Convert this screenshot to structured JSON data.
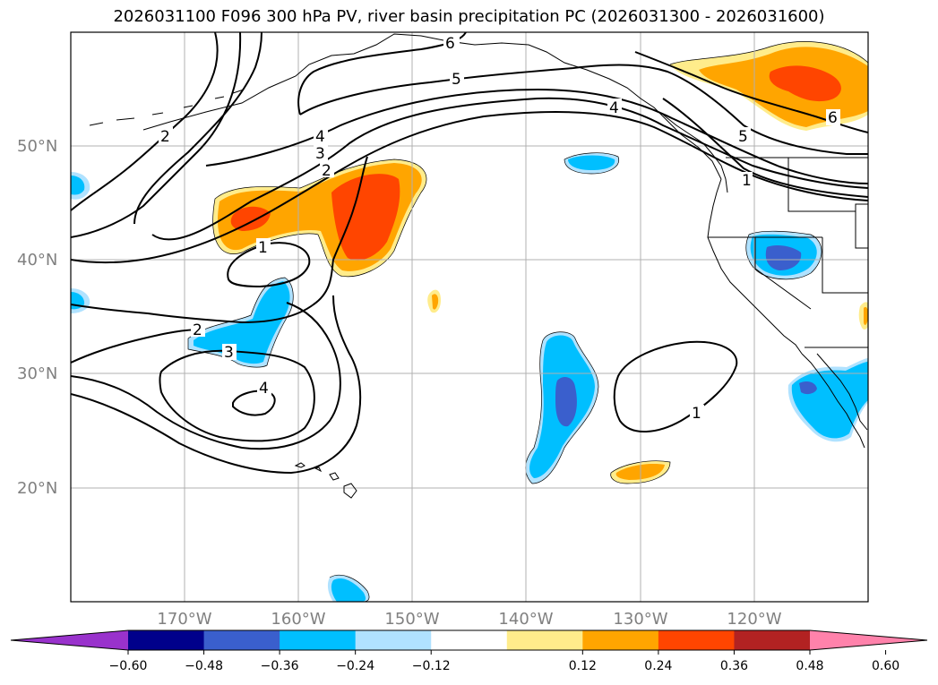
{
  "title": "2026031100 F096 300 hPa PV, river basin precipitation PC (2026031300 - 2026031600)",
  "lon_labels": [
    "170°W",
    "160°W",
    "150°W",
    "140°W",
    "130°W",
    "120°W"
  ],
  "lat_labels": [
    "50°N",
    "40°N",
    "30°N",
    "20°N"
  ],
  "contour_labels": [
    "6",
    "5",
    "4",
    "4",
    "3",
    "2",
    "2",
    "1",
    "2",
    "3",
    "4",
    "5",
    "1",
    "6",
    "1"
  ],
  "colorbar": {
    "colors": [
      "#9932cc",
      "#00008b",
      "#3a5fcd",
      "#00bfff",
      "#b0e2ff",
      "#ffffff",
      "#ffec8b",
      "#ffa500",
      "#ff4500",
      "#b22222",
      "#ff82ab"
    ],
    "tick_labels": [
      "−0.60",
      "−0.48",
      "−0.36",
      "−0.24",
      "−0.12",
      "0.12",
      "0.24",
      "0.36",
      "0.48",
      "0.60"
    ]
  },
  "colors": {
    "grid": "#b0b0b0",
    "axis_text": "#808080",
    "coast": "#000000"
  }
}
